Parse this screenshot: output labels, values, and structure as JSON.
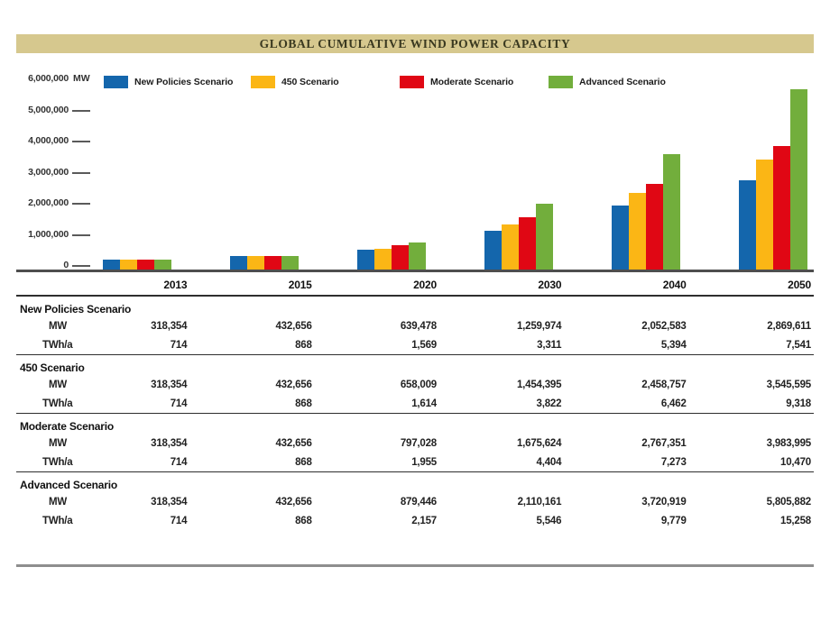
{
  "title": "GLOBAL CUMULATIVE WIND POWER CAPACITY",
  "colors": {
    "title_bg": "#d6c88e",
    "title_text": "#3a3920",
    "new_policies": "#1466ac",
    "scenario_450": "#fbb615",
    "moderate": "#e00714",
    "advanced": "#72ae3c"
  },
  "chart_data": {
    "type": "bar",
    "title": "GLOBAL CUMULATIVE WIND POWER CAPACITY",
    "unit_label": "MW",
    "categories": [
      "2013",
      "2015",
      "2020",
      "2030",
      "2040",
      "2050"
    ],
    "series": [
      {
        "name": "New Policies Scenario",
        "color": "#1466ac",
        "values": [
          318354,
          432656,
          639478,
          1259974,
          2052583,
          2869611
        ]
      },
      {
        "name": "450 Scenario",
        "color": "#fbb615",
        "values": [
          318354,
          432656,
          658009,
          1454395,
          2458757,
          3545595
        ]
      },
      {
        "name": "Moderate Scenario",
        "color": "#e00714",
        "values": [
          318354,
          432656,
          797028,
          1675624,
          2767351,
          3983995
        ]
      },
      {
        "name": "Advanced Scenario",
        "color": "#72ae3c",
        "values": [
          318354,
          432656,
          879446,
          2110161,
          3720919,
          5805882
        ]
      }
    ],
    "ylim": [
      0,
      6000000
    ],
    "ytick_labels": [
      "6,000,000",
      "5,000,000",
      "4,000,000",
      "3,000,000",
      "2,000,000",
      "1,000,000",
      "0"
    ],
    "grid": "off",
    "legend_position": "top"
  },
  "table": {
    "columns": [
      "2013",
      "2015",
      "2020",
      "2030",
      "2040",
      "2050"
    ],
    "row_labels": {
      "mw": "MW",
      "twh": "TWh/a"
    },
    "sections": [
      {
        "name": "New Policies Scenario",
        "mw": [
          "318,354",
          "432,656",
          "639,478",
          "1,259,974",
          "2,052,583",
          "2,869,611"
        ],
        "twh": [
          "714",
          "868",
          "1,569",
          "3,311",
          "5,394",
          "7,541"
        ]
      },
      {
        "name": "450 Scenario",
        "mw": [
          "318,354",
          "432,656",
          "658,009",
          "1,454,395",
          "2,458,757",
          "3,545,595"
        ],
        "twh": [
          "714",
          "868",
          "1,614",
          "3,822",
          "6,462",
          "9,318"
        ]
      },
      {
        "name": "Moderate Scenario",
        "mw": [
          "318,354",
          "432,656",
          "797,028",
          "1,675,624",
          "2,767,351",
          "3,983,995"
        ],
        "twh": [
          "714",
          "868",
          "1,955",
          "4,404",
          "7,273",
          "10,470"
        ]
      },
      {
        "name": "Advanced Scenario",
        "mw": [
          "318,354",
          "432,656",
          "879,446",
          "2,110,161",
          "3,720,919",
          "5,805,882"
        ],
        "twh": [
          "714",
          "868",
          "2,157",
          "5,546",
          "9,779",
          "15,258"
        ]
      }
    ]
  }
}
